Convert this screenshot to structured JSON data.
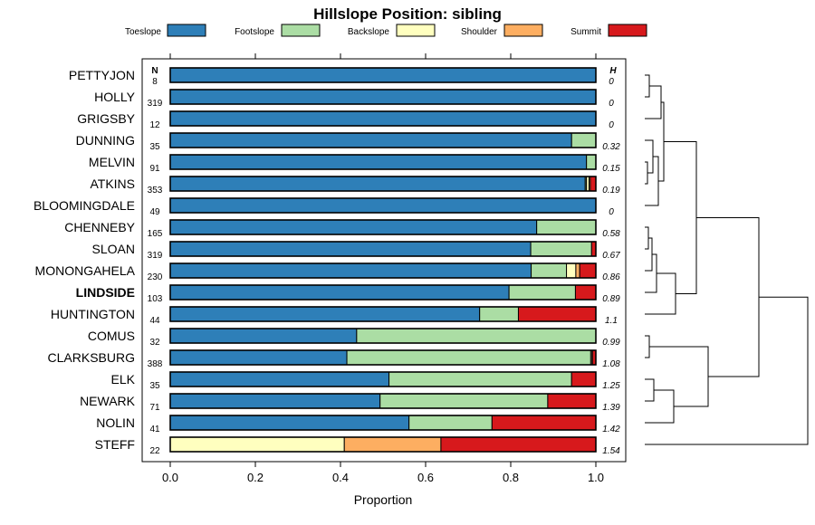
{
  "chart_data": {
    "type": "bar",
    "orientation": "horizontal",
    "stacked": true,
    "title": "Hillslope Position: sibling",
    "xlabel": "Proportion",
    "xlim": [
      0,
      1
    ],
    "xticks": [
      "0.0",
      "0.2",
      "0.4",
      "0.6",
      "0.8",
      "1.0"
    ],
    "xtick_values": [
      0,
      0.2,
      0.4,
      0.6,
      0.8,
      1.0
    ],
    "n_header": "N",
    "h_header": "H",
    "highlight": "LINDSIDE",
    "legend": [
      {
        "name": "Toeslope",
        "color": "#2e7fb8"
      },
      {
        "name": "Footslope",
        "color": "#abdda4"
      },
      {
        "name": "Backslope",
        "color": "#ffffbf"
      },
      {
        "name": "Shoulder",
        "color": "#fdae61"
      },
      {
        "name": "Summit",
        "color": "#d7191c"
      }
    ],
    "categories": [
      "PETTYJON",
      "HOLLY",
      "GRIGSBY",
      "DUNNING",
      "MELVIN",
      "ATKINS",
      "BLOOMINGDALE",
      "CHENNEBY",
      "SLOAN",
      "MONONGAHELA",
      "LINDSIDE",
      "HUNTINGTON",
      "COMUS",
      "CLARKSBURG",
      "ELK",
      "NEWARK",
      "NOLIN",
      "STEFF"
    ],
    "n": [
      "8",
      "319",
      "12",
      "35",
      "91",
      "353",
      "49",
      "165",
      "319",
      "230",
      "103",
      "44",
      "32",
      "388",
      "35",
      "71",
      "41",
      "22"
    ],
    "h": [
      "0",
      "0",
      "0",
      "0.32",
      "0.15",
      "0.19",
      "0",
      "0.58",
      "0.67",
      "0.86",
      "0.89",
      "1.1",
      "0.99",
      "1.08",
      "1.25",
      "1.39",
      "1.42",
      "1.54"
    ],
    "series": [
      {
        "name": "Toeslope",
        "values": [
          1.0,
          1.0,
          1.0,
          0.943,
          0.978,
          0.975,
          1.0,
          0.861,
          0.847,
          0.848,
          0.796,
          0.727,
          0.438,
          0.415,
          0.514,
          0.493,
          0.561,
          0.0
        ]
      },
      {
        "name": "Footslope",
        "values": [
          0,
          0,
          0,
          0.057,
          0.022,
          0.003,
          0,
          0.139,
          0.143,
          0.083,
          0.156,
          0.091,
          0.562,
          0.573,
          0.429,
          0.394,
          0.195,
          0.0
        ]
      },
      {
        "name": "Backslope",
        "values": [
          0,
          0,
          0,
          0,
          0,
          0.006,
          0,
          0,
          0,
          0.022,
          0,
          0,
          0,
          0.003,
          0,
          0,
          0,
          0.409
        ]
      },
      {
        "name": "Shoulder",
        "values": [
          0,
          0,
          0,
          0,
          0,
          0.003,
          0,
          0,
          0,
          0.009,
          0,
          0,
          0,
          0.001,
          0,
          0,
          0,
          0.227
        ]
      },
      {
        "name": "Summit",
        "values": [
          0,
          0,
          0,
          0,
          0,
          0.013,
          0,
          0,
          0.01,
          0.038,
          0.048,
          0.182,
          0,
          0.008,
          0.057,
          0.113,
          0.244,
          0.364
        ]
      }
    ]
  }
}
